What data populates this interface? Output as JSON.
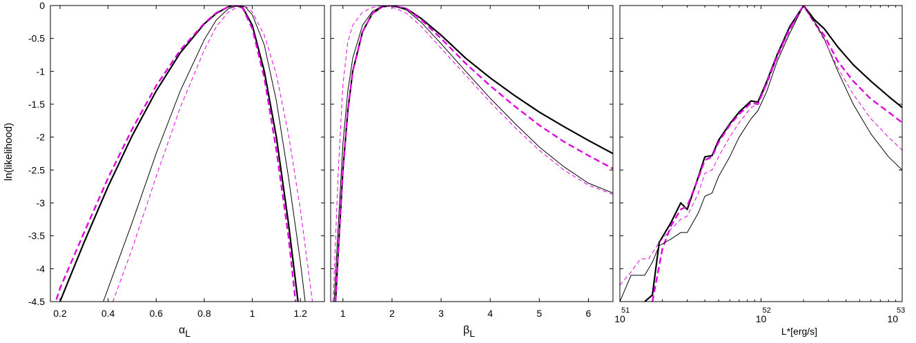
{
  "figure": {
    "ylabel": "ln(likelihood)",
    "y_ticks": [
      "0",
      "-0.5",
      "-1",
      "-1.5",
      "-2",
      "-2.5",
      "-3",
      "-3.5",
      "-4",
      "-4.5"
    ],
    "y_tick_values": [
      0,
      -0.5,
      -1,
      -1.5,
      -2,
      -2.5,
      -3,
      -3.5,
      -4,
      -4.5
    ],
    "colors": {
      "black": "#000000",
      "magenta": "#e000e0"
    }
  },
  "chart_data": [
    {
      "type": "line",
      "panel": "left",
      "xlabel": "α",
      "xlabel_sub": "L",
      "xlim": [
        0.16,
        1.3
      ],
      "ylim": [
        -4.5,
        0
      ],
      "xscale": "linear",
      "x_ticks": [
        "0.2",
        "0.4",
        "0.6",
        "0.8",
        "1",
        "1.2"
      ],
      "x_tick_values": [
        0.2,
        0.4,
        0.6,
        0.8,
        1.0,
        1.2
      ],
      "series": [
        {
          "style": "black-thick",
          "x": [
            0.16,
            0.2,
            0.3,
            0.4,
            0.5,
            0.6,
            0.7,
            0.8,
            0.85,
            0.9,
            0.93,
            0.96,
            1.0,
            1.05,
            1.1,
            1.15,
            1.19
          ],
          "y": [
            -4.9,
            -4.5,
            -3.6,
            -2.75,
            -1.98,
            -1.3,
            -0.72,
            -0.28,
            -0.12,
            -0.02,
            0,
            -0.03,
            -0.3,
            -1.0,
            -2.0,
            -3.3,
            -4.5
          ]
        },
        {
          "style": "magenta-thick-dashed",
          "x": [
            0.16,
            0.2,
            0.3,
            0.4,
            0.5,
            0.6,
            0.7,
            0.8,
            0.85,
            0.9,
            0.93,
            0.96,
            1.0,
            1.05,
            1.1,
            1.15,
            1.18
          ],
          "y": [
            -4.75,
            -4.3,
            -3.45,
            -2.62,
            -1.88,
            -1.22,
            -0.68,
            -0.27,
            -0.11,
            -0.02,
            0,
            -0.04,
            -0.35,
            -1.1,
            -2.2,
            -3.5,
            -4.5
          ]
        },
        {
          "style": "black-thin",
          "x": [
            0.38,
            0.5,
            0.6,
            0.7,
            0.8,
            0.85,
            0.9,
            0.94,
            0.97,
            1.0,
            1.05,
            1.1,
            1.15,
            1.2,
            1.22
          ],
          "y": [
            -4.5,
            -3.3,
            -2.25,
            -1.3,
            -0.52,
            -0.22,
            -0.05,
            0,
            -0.02,
            -0.14,
            -0.6,
            -1.45,
            -2.6,
            -3.9,
            -4.5
          ]
        },
        {
          "style": "magenta-thin-dashed",
          "x": [
            0.38,
            0.5,
            0.6,
            0.7,
            0.8,
            0.85,
            0.9,
            0.95,
            0.98,
            1.0,
            1.05,
            1.1,
            1.15,
            1.2,
            1.25
          ],
          "y": [
            -4.9,
            -3.7,
            -2.6,
            -1.55,
            -0.68,
            -0.32,
            -0.1,
            0,
            -0.03,
            -0.1,
            -0.45,
            -1.05,
            -1.95,
            -3.1,
            -4.5
          ]
        }
      ]
    },
    {
      "type": "line",
      "panel": "middle",
      "xlabel": "β",
      "xlabel_sub": "L",
      "xlim": [
        0.75,
        6.5
      ],
      "ylim": [
        -4.5,
        0
      ],
      "xscale": "linear",
      "x_ticks": [
        "1",
        "2",
        "3",
        "4",
        "5",
        "6"
      ],
      "x_tick_values": [
        1,
        2,
        3,
        4,
        5,
        6
      ],
      "series": [
        {
          "style": "black-thick",
          "x": [
            0.85,
            0.9,
            1.0,
            1.1,
            1.2,
            1.4,
            1.6,
            1.8,
            2.0,
            2.3,
            2.6,
            3.0,
            3.5,
            4.0,
            4.5,
            5.0,
            5.5,
            6.0,
            6.5
          ],
          "y": [
            -4.5,
            -3.8,
            -2.5,
            -1.6,
            -1.0,
            -0.4,
            -0.12,
            -0.02,
            0,
            -0.05,
            -0.2,
            -0.45,
            -0.8,
            -1.1,
            -1.37,
            -1.62,
            -1.84,
            -2.05,
            -2.25
          ]
        },
        {
          "style": "magenta-thick-dashed",
          "x": [
            0.85,
            0.9,
            1.0,
            1.1,
            1.2,
            1.4,
            1.6,
            1.8,
            2.0,
            2.3,
            2.6,
            3.0,
            3.5,
            4.0,
            4.5,
            5.0,
            5.5,
            6.0,
            6.5
          ],
          "y": [
            -4.5,
            -3.8,
            -2.5,
            -1.6,
            -1.0,
            -0.4,
            -0.12,
            -0.02,
            0,
            -0.05,
            -0.22,
            -0.5,
            -0.88,
            -1.22,
            -1.53,
            -1.82,
            -2.07,
            -2.28,
            -2.48
          ]
        },
        {
          "style": "black-thin",
          "x": [
            0.82,
            0.9,
            1.0,
            1.1,
            1.2,
            1.4,
            1.6,
            1.8,
            2.0,
            2.3,
            2.6,
            3.0,
            3.5,
            4.0,
            4.5,
            5.0,
            5.5,
            6.0,
            6.5
          ],
          "y": [
            -4.5,
            -3.4,
            -2.1,
            -1.3,
            -0.8,
            -0.3,
            -0.09,
            -0.01,
            0,
            -0.07,
            -0.26,
            -0.58,
            -1.0,
            -1.41,
            -1.79,
            -2.15,
            -2.45,
            -2.7,
            -2.85
          ]
        },
        {
          "style": "magenta-thin-dashed",
          "x": [
            0.8,
            0.9,
            1.0,
            1.1,
            1.2,
            1.4,
            1.6,
            1.8,
            2.0,
            2.3,
            2.6,
            3.0,
            3.5,
            4.0,
            4.5,
            5.0,
            5.5,
            6.0,
            6.5
          ],
          "y": [
            -4.5,
            -2.6,
            -1.2,
            -0.55,
            -0.3,
            -0.1,
            -0.03,
            0,
            -0.02,
            -0.12,
            -0.32,
            -0.65,
            -1.06,
            -1.47,
            -1.85,
            -2.2,
            -2.5,
            -2.73,
            -2.87
          ]
        }
      ]
    },
    {
      "type": "line",
      "panel": "right",
      "xlabel": "L*[erg/s]",
      "xlim": [
        1e+51,
        1e+53
      ],
      "ylim": [
        -4.5,
        0
      ],
      "xscale": "log",
      "x_ticks": [
        {
          "base": "10",
          "exp": "51"
        },
        {
          "base": "10",
          "exp": "52"
        },
        {
          "base": "10",
          "exp": "53"
        }
      ],
      "x_tick_values": [
        1e+51,
        1e+52,
        1e+53
      ],
      "series": [
        {
          "style": "black-thick",
          "x": [
            1.5e+51,
            1.7e+51,
            1.9e+51,
            2.3e+51,
            2.7e+51,
            3e+51,
            3.6e+51,
            4e+51,
            4.5e+51,
            5e+51,
            6e+51,
            7e+51,
            8.5e+51,
            9.5e+51,
            1.1e+52,
            1.3e+52,
            1.6e+52,
            2e+52,
            2.4e+52,
            2.8e+52,
            3.5e+52,
            4.5e+52,
            6e+52,
            8e+52,
            1e+53
          ],
          "y": [
            -4.5,
            -4.4,
            -3.6,
            -3.3,
            -3.0,
            -3.1,
            -2.6,
            -2.3,
            -2.28,
            -2.05,
            -1.8,
            -1.62,
            -1.45,
            -1.47,
            -1.15,
            -0.75,
            -0.32,
            0,
            -0.22,
            -0.35,
            -0.63,
            -0.9,
            -1.15,
            -1.38,
            -1.55
          ]
        },
        {
          "style": "magenta-thick-dashed",
          "x": [
            1.7e+51,
            2e+51,
            2.3e+51,
            2.7e+51,
            3e+51,
            3.6e+51,
            4e+51,
            4.5e+51,
            5e+51,
            6e+51,
            7e+51,
            8.5e+51,
            9.5e+51,
            1.1e+52,
            1.3e+52,
            1.6e+52,
            2e+52,
            2.4e+52,
            2.8e+52,
            3.5e+52,
            4.5e+52,
            6e+52,
            8e+52,
            1e+53
          ],
          "y": [
            -4.5,
            -3.7,
            -3.35,
            -3.1,
            -3.05,
            -2.62,
            -2.35,
            -2.3,
            -2.08,
            -1.82,
            -1.65,
            -1.48,
            -1.5,
            -1.17,
            -0.77,
            -0.35,
            0,
            -0.27,
            -0.45,
            -0.85,
            -1.15,
            -1.42,
            -1.62,
            -1.78
          ]
        },
        {
          "style": "black-thin",
          "x": [
            1e+51,
            1.2e+51,
            1.5e+51,
            1.7e+51,
            1.9e+51,
            2.3e+51,
            2.7e+51,
            3e+51,
            3.6e+51,
            4e+51,
            4.5e+51,
            5e+51,
            6e+51,
            7e+51,
            8.5e+51,
            9.5e+51,
            1.1e+52,
            1.3e+52,
            1.6e+52,
            2e+52,
            2.4e+52,
            2.8e+52,
            3.5e+52,
            4.5e+52,
            6e+52,
            8e+52,
            1e+53
          ],
          "y": [
            -4.5,
            -4.1,
            -4.1,
            -3.9,
            -3.65,
            -3.55,
            -3.45,
            -3.45,
            -3.15,
            -2.9,
            -2.85,
            -2.6,
            -2.3,
            -2.0,
            -1.72,
            -1.6,
            -1.3,
            -0.85,
            -0.42,
            0,
            -0.25,
            -0.5,
            -1.0,
            -1.5,
            -1.95,
            -2.3,
            -2.5
          ]
        },
        {
          "style": "magenta-thin-dashed",
          "x": [
            1e+51,
            1.2e+51,
            1.4e+51,
            1.6e+51,
            1.9e+51,
            2.3e+51,
            2.7e+51,
            3e+51,
            3.6e+51,
            4e+51,
            4.5e+51,
            5e+51,
            6e+51,
            7e+51,
            8.5e+51,
            9.5e+51,
            1.1e+52,
            1.3e+52,
            1.6e+52,
            2e+52,
            2.4e+52,
            2.8e+52,
            3.5e+52,
            4.5e+52,
            6e+52,
            8e+52,
            1e+53
          ],
          "y": [
            -4.25,
            -4.05,
            -3.85,
            -3.85,
            -3.6,
            -3.4,
            -3.25,
            -3.2,
            -2.85,
            -2.55,
            -2.5,
            -2.3,
            -2.0,
            -1.78,
            -1.55,
            -1.5,
            -1.2,
            -0.8,
            -0.38,
            0,
            -0.28,
            -0.52,
            -0.95,
            -1.35,
            -1.72,
            -2.0,
            -2.2
          ]
        }
      ]
    }
  ]
}
